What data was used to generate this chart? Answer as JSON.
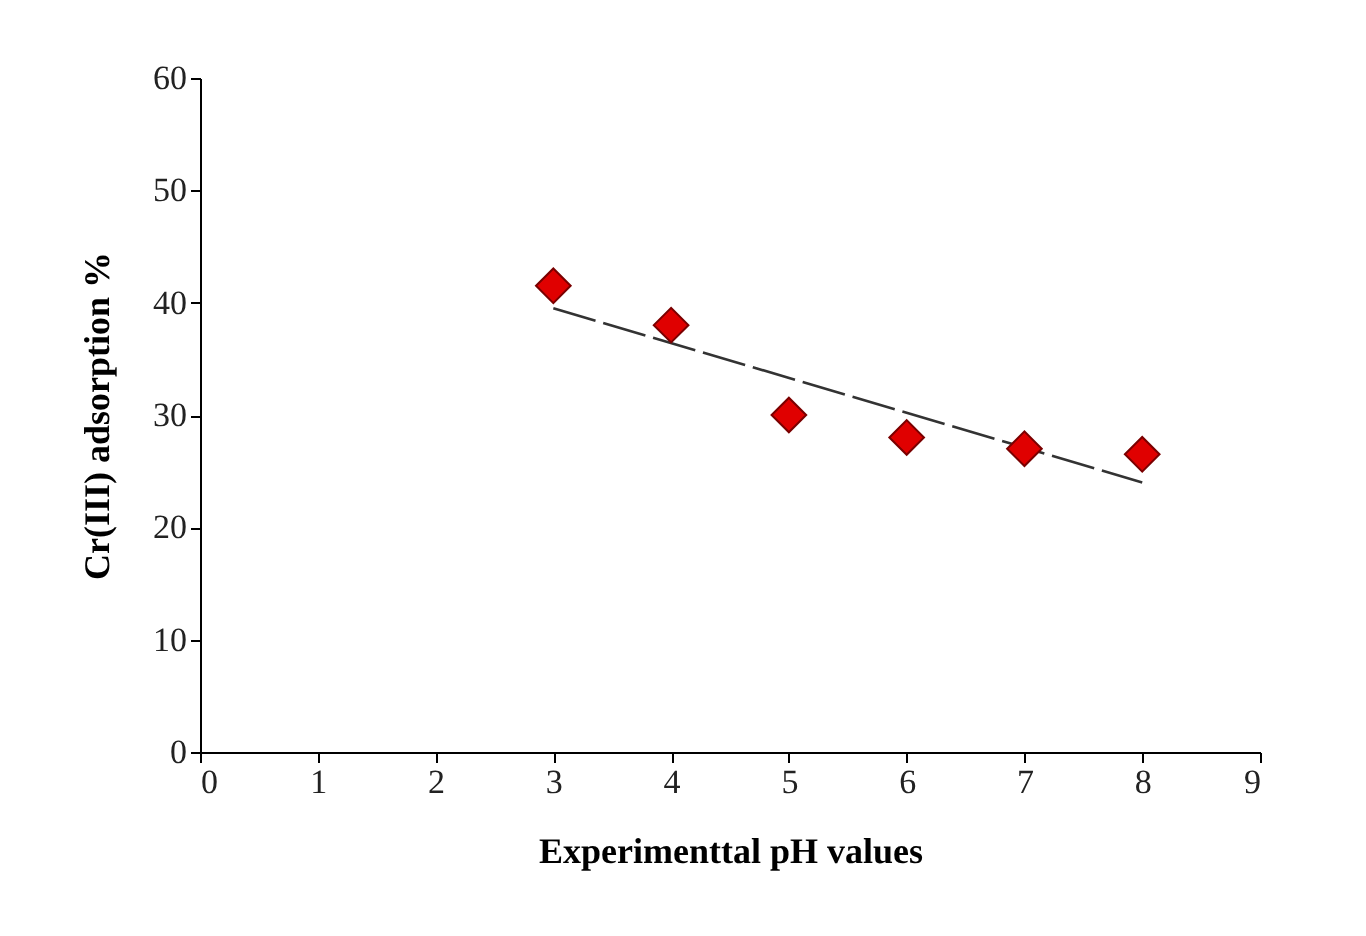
{
  "chart_data": {
    "type": "scatter",
    "xlabel": "Experimenttal pH values",
    "ylabel": "Cr(III) adsorption %",
    "xlim": [
      0,
      9
    ],
    "ylim": [
      0,
      60
    ],
    "xticks": [
      0,
      1,
      2,
      3,
      4,
      5,
      6,
      7,
      8,
      9
    ],
    "yticks": [
      0,
      10,
      20,
      30,
      40,
      50,
      60
    ],
    "grid": false,
    "series": [
      {
        "color": "#e00000",
        "marker": "diamond",
        "x": [
          3,
          4,
          5,
          6,
          7,
          8
        ],
        "values": [
          41.5,
          38,
          30,
          28,
          27,
          26.5
        ]
      },
      {
        "type": "line",
        "color": "#333333",
        "line_style": "dashed",
        "marker": "none",
        "x": [
          3,
          8
        ],
        "values": [
          39.5,
          24
        ]
      }
    ]
  }
}
